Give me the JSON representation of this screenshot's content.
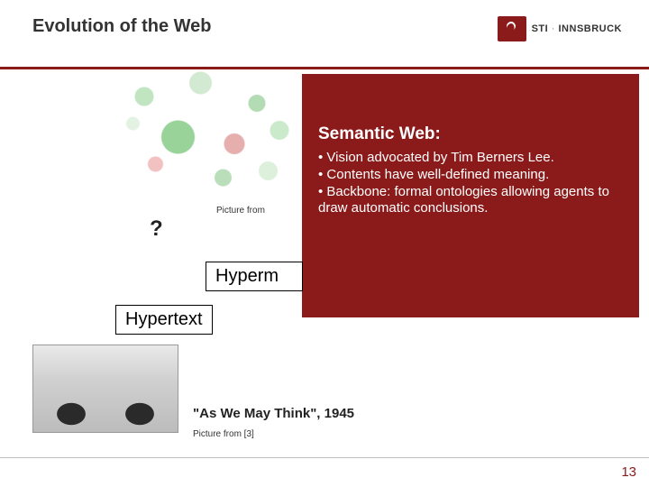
{
  "header": {
    "title": "Evolution of the Web",
    "logo_primary": "STI",
    "logo_separator": " · ",
    "logo_secondary": "INNSBRUCK"
  },
  "diagram": {
    "picture_from_label": "Picture from"
  },
  "panel": {
    "title": "Semantic Web:",
    "bullets": [
      "Vision advocated by Tim Berners Lee.",
      "Contents have well-defined meaning.",
      "Backbone: formal ontologies allowing agents to draw automatic conclusions."
    ]
  },
  "question_mark": "?",
  "boxes": {
    "hyperm": "Hyperm",
    "hypertext": "Hypertext"
  },
  "quote": "\"As We May Think\", 1945",
  "picture_from2": "Picture from [3]",
  "page_number": "13",
  "colors": {
    "brand": "#8b1a1a",
    "text": "#333333",
    "page_num": "#8b1a1a",
    "divider": "#bfbfbf"
  }
}
